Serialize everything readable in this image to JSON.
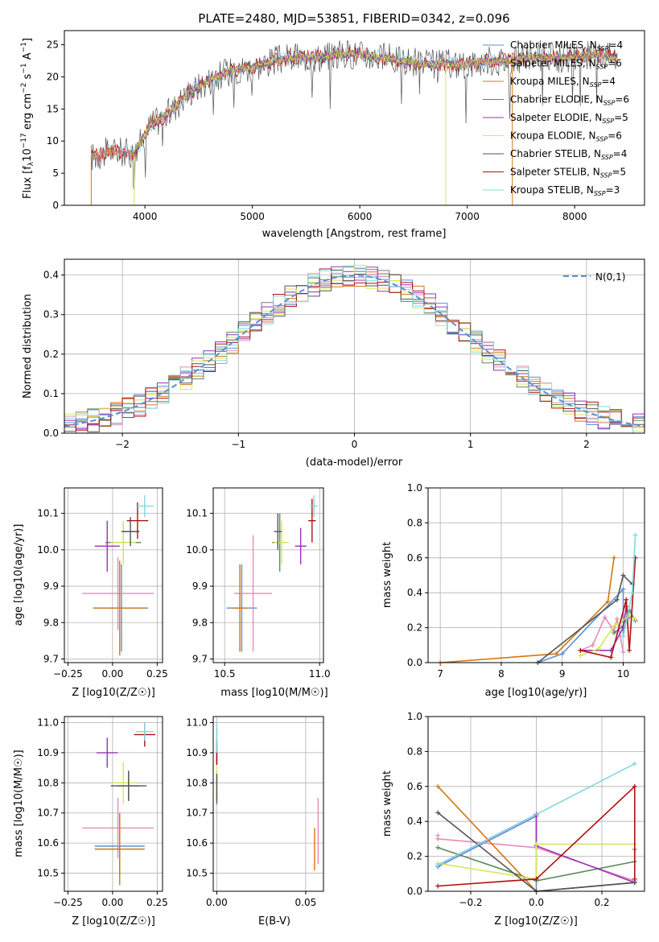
{
  "colors": {
    "chabrier_miles": "#5b8fd6",
    "salpeter_miles": "#e58bb8",
    "kroupa_miles": "#d4760e",
    "chabrier_elodie": "#5c8a5c",
    "salpeter_elodie": "#9b30b8",
    "kroupa_elodie": "#d8e65a",
    "chabrier_stelib": "#555555",
    "salpeter_stelib": "#b01010",
    "kroupa_stelib": "#80d8e0",
    "normal_curve": "#5b8fd6"
  },
  "chart_data": [
    {
      "type": "line",
      "id": "spectrum",
      "title": "PLATE=2480, MJD=53851, FIBERID=0342, z=0.096",
      "xlabel": "wavelength [Angstrom, rest frame]",
      "ylabel": "Flux [f_λ10^-17 erg cm^-2 s^-1 A^-1]",
      "xlim": [
        3250,
        8650
      ],
      "ylim": [
        0,
        27.2
      ],
      "xticks": [
        4000,
        5000,
        6000,
        7000,
        8000
      ],
      "yticks": [
        0,
        5,
        10,
        15,
        20,
        25
      ],
      "grid": false,
      "legend_position": "upper-right",
      "legend": [
        "Chabrier MILES, N_SSP=4",
        "Salpeter MILES, N_SSP=6",
        "Kroupa MILES, N_SSP=4",
        "Chabrier ELODIE, N_SSP=6",
        "Salpeter ELODIE, N_SSP=5",
        "Kroupa ELODIE, N_SSP=6",
        "Chabrier STELIB, N_SSP=4",
        "Salpeter STELIB, N_SSP=5",
        "Kroupa STELIB, N_SSP=3"
      ],
      "continuum": {
        "x": [
          3500,
          3700,
          3900,
          3950,
          4050,
          4200,
          4400,
          4600,
          4800,
          5000,
          5200,
          5400,
          5600,
          5800,
          6000,
          6200,
          6400,
          6600,
          6800,
          7000,
          7200,
          7400,
          7600,
          7800,
          8000,
          8200,
          8400
        ],
        "y": [
          7.5,
          8.5,
          8.0,
          9.5,
          12.5,
          14.0,
          17.5,
          19.5,
          21.0,
          21.5,
          22.5,
          23.0,
          23.0,
          23.5,
          23.5,
          23.0,
          22.5,
          22.0,
          22.0,
          22.0,
          22.5,
          22.5,
          23.0,
          23.0,
          23.0,
          23.5,
          23.0
        ]
      }
    },
    {
      "type": "histogram",
      "id": "residuals",
      "xlabel": "(data-model)/error",
      "ylabel": "Normed distribution",
      "xlim": [
        -2.5,
        2.5
      ],
      "ylim": [
        0,
        0.44
      ],
      "xticks": [
        -2,
        -1,
        0,
        1,
        2
      ],
      "yticks": [
        0.0,
        0.1,
        0.2,
        0.3,
        0.4
      ],
      "grid": true,
      "legend_position": "upper-right",
      "legend": [
        "N(0,1)"
      ],
      "bin_width": 0.1
    },
    {
      "type": "scatter",
      "id": "age_vs_Z",
      "xlabel": "Z [log10(Z/Z☉)]",
      "ylabel": "age [log10(age/yr)]",
      "xlim": [
        -0.27,
        0.28
      ],
      "ylim": [
        9.69,
        10.17
      ],
      "xticks": [
        -0.25,
        0.0,
        0.25
      ],
      "yticks": [
        9.7,
        9.8,
        9.9,
        10.0,
        10.1
      ],
      "grid": true,
      "points": [
        {
          "series": "Chabrier MILES",
          "x": 0.05,
          "y": 9.84,
          "xerr": 0.15,
          "yerr": 0.12
        },
        {
          "series": "Salpeter MILES",
          "x": 0.03,
          "y": 9.88,
          "xerr": 0.2,
          "yerr": 0.1
        },
        {
          "series": "Kroupa MILES",
          "x": 0.04,
          "y": 9.84,
          "xerr": 0.15,
          "yerr": 0.13
        },
        {
          "series": "Chabrier ELODIE",
          "x": 0.06,
          "y": 10.02,
          "xerr": 0.1,
          "yerr": 0.05
        },
        {
          "series": "Salpeter ELODIE",
          "x": -0.03,
          "y": 10.01,
          "xerr": 0.07,
          "yerr": 0.07
        },
        {
          "series": "Kroupa ELODIE",
          "x": 0.06,
          "y": 10.02,
          "xerr": 0.07,
          "yerr": 0.06
        },
        {
          "series": "Chabrier STELIB",
          "x": 0.1,
          "y": 10.05,
          "xerr": 0.05,
          "yerr": 0.04
        },
        {
          "series": "Salpeter STELIB",
          "x": 0.14,
          "y": 10.08,
          "xerr": 0.06,
          "yerr": 0.05
        },
        {
          "series": "Kroupa STELIB",
          "x": 0.18,
          "y": 10.12,
          "xerr": 0.05,
          "yerr": 0.03
        }
      ]
    },
    {
      "type": "scatter",
      "id": "age_vs_mass",
      "xlabel": "mass [log10(M/M☉)]",
      "xlim": [
        10.44,
        11.02
      ],
      "ylim": [
        9.69,
        10.17
      ],
      "xticks": [
        10.5,
        11.0
      ],
      "yticks": [
        9.7,
        9.8,
        9.9,
        10.0,
        10.1
      ],
      "grid": true,
      "points": [
        {
          "series": "Chabrier MILES",
          "x": 10.59,
          "y": 9.84,
          "xerr": 0.08,
          "yerr": 0.12
        },
        {
          "series": "Salpeter MILES",
          "x": 10.65,
          "y": 9.88,
          "xerr": 0.1,
          "yerr": 0.16
        },
        {
          "series": "Kroupa MILES",
          "x": 10.58,
          "y": 9.84,
          "xerr": 0.04,
          "yerr": 0.12
        },
        {
          "series": "Chabrier ELODIE",
          "x": 10.79,
          "y": 10.02,
          "xerr": 0.04,
          "yerr": 0.08
        },
        {
          "series": "Salpeter ELODIE",
          "x": 10.9,
          "y": 10.01,
          "xerr": 0.03,
          "yerr": 0.05
        },
        {
          "series": "Kroupa ELODIE",
          "x": 10.8,
          "y": 10.02,
          "xerr": 0.04,
          "yerr": 0.06
        },
        {
          "series": "Chabrier STELIB",
          "x": 10.78,
          "y": 10.05,
          "xerr": 0.02,
          "yerr": 0.05
        },
        {
          "series": "Salpeter STELIB",
          "x": 10.96,
          "y": 10.08,
          "xerr": 0.02,
          "yerr": 0.06
        },
        {
          "series": "Kroupa STELIB",
          "x": 10.97,
          "y": 10.12,
          "xerr": 0.02,
          "yerr": 0.03
        }
      ]
    },
    {
      "type": "line",
      "id": "weight_vs_age",
      "xlabel": "age [log10(age/yr)]",
      "ylabel": "mass weight",
      "xlim": [
        6.8,
        10.35
      ],
      "ylim": [
        0,
        1.0
      ],
      "xticks": [
        7,
        8,
        9,
        10
      ],
      "yticks": [
        0.0,
        0.2,
        0.4,
        0.6,
        0.8,
        1.0
      ],
      "grid": true,
      "series": [
        {
          "name": "Chabrier MILES",
          "x": [
            8.6,
            9.0,
            10.0,
            10.0
          ],
          "y": [
            0.0,
            0.05,
            0.42,
            0.15
          ]
        },
        {
          "name": "Salpeter MILES",
          "x": [
            9.3,
            9.5,
            9.7,
            9.85,
            9.9,
            10.0
          ],
          "y": [
            0.07,
            0.1,
            0.26,
            0.18,
            0.25,
            0.06
          ]
        },
        {
          "name": "Kroupa MILES",
          "x": [
            7.0,
            8.9,
            9.75,
            9.85
          ],
          "y": [
            0.0,
            0.05,
            0.35,
            0.6
          ]
        },
        {
          "name": "Chabrier ELODIE",
          "x": [
            9.85,
            10.0,
            10.1,
            10.2
          ],
          "y": [
            0.17,
            0.21,
            0.3,
            0.24
          ]
        },
        {
          "name": "Salpeter ELODIE",
          "x": [
            9.3,
            9.8,
            10.0,
            10.05,
            10.1
          ],
          "y": [
            0.07,
            0.07,
            0.2,
            0.32,
            0.26
          ]
        },
        {
          "name": "Kroupa ELODIE",
          "x": [
            9.3,
            9.6,
            9.85,
            9.95,
            10.1,
            10.2
          ],
          "y": [
            0.04,
            0.08,
            0.21,
            0.23,
            0.27,
            0.25
          ]
        },
        {
          "name": "Chabrier STELIB",
          "x": [
            8.6,
            9.9,
            10.0,
            10.15
          ],
          "y": [
            0.0,
            0.36,
            0.5,
            0.45
          ]
        },
        {
          "name": "Salpeter STELIB",
          "x": [
            9.3,
            9.8,
            10.05,
            10.1,
            10.2
          ],
          "y": [
            0.07,
            0.03,
            0.36,
            0.07,
            0.6
          ]
        },
        {
          "name": "Kroupa STELIB",
          "x": [
            10.0,
            10.15,
            10.2
          ],
          "y": [
            0.15,
            0.4,
            0.73
          ]
        }
      ]
    },
    {
      "type": "scatter",
      "id": "mass_vs_Z",
      "xlabel": "Z [log10(Z/Z☉)]",
      "ylabel": "mass [log10(M/M☉)]",
      "xlim": [
        -0.27,
        0.28
      ],
      "ylim": [
        10.44,
        11.02
      ],
      "xticks": [
        -0.25,
        0.0,
        0.25
      ],
      "yticks": [
        10.5,
        10.6,
        10.7,
        10.8,
        10.9,
        11.0
      ],
      "grid": true,
      "points": [
        {
          "series": "Chabrier MILES",
          "x": 0.04,
          "y": 10.59,
          "xerr": 0.14,
          "yerr": 0.1
        },
        {
          "series": "Salpeter MILES",
          "x": 0.03,
          "y": 10.65,
          "xerr": 0.2,
          "yerr": 0.1
        },
        {
          "series": "Kroupa MILES",
          "x": 0.04,
          "y": 10.58,
          "xerr": 0.14,
          "yerr": 0.12
        },
        {
          "series": "Chabrier ELODIE",
          "x": 0.09,
          "y": 10.79,
          "xerr": 0.06,
          "yerr": 0.05
        },
        {
          "series": "Salpeter ELODIE",
          "x": -0.03,
          "y": 10.9,
          "xerr": 0.06,
          "yerr": 0.05
        },
        {
          "series": "Kroupa ELODIE",
          "x": 0.06,
          "y": 10.8,
          "xerr": 0.07,
          "yerr": 0.07
        },
        {
          "series": "Chabrier STELIB",
          "x": 0.09,
          "y": 10.79,
          "xerr": 0.1,
          "yerr": 0.05
        },
        {
          "series": "Salpeter STELIB",
          "x": 0.18,
          "y": 10.96,
          "xerr": 0.06,
          "yerr": 0.04
        },
        {
          "series": "Kroupa STELIB",
          "x": 0.18,
          "y": 10.97,
          "xerr": 0.05,
          "yerr": 0.03
        }
      ]
    },
    {
      "type": "scatter",
      "id": "mass_vs_EBV",
      "xlabel": "E(B-V)",
      "xlim": [
        -0.002,
        0.06
      ],
      "ylim": [
        10.44,
        11.02
      ],
      "xticks": [
        0.0,
        0.05
      ],
      "yticks": [
        10.5,
        10.6,
        10.7,
        10.8,
        10.9,
        11.0
      ],
      "grid": true,
      "points": [
        {
          "series": "Chabrier MILES",
          "x": 0.0,
          "y": 10.92,
          "xerr": 0,
          "yerr": 0.06
        },
        {
          "series": "Salpeter MILES",
          "x": 0.057,
          "y": 10.64,
          "xerr": 0,
          "yerr": 0.11
        },
        {
          "series": "Kroupa MILES",
          "x": 0.055,
          "y": 10.58,
          "xerr": 0,
          "yerr": 0.07
        },
        {
          "series": "Chabrier ELODIE",
          "x": 0.0,
          "y": 10.79,
          "xerr": 0,
          "yerr": 0.05
        },
        {
          "series": "Salpeter ELODIE",
          "x": 0.0,
          "y": 10.9,
          "xerr": 0,
          "yerr": 0.04
        },
        {
          "series": "Kroupa ELODIE",
          "x": 0.0,
          "y": 10.8,
          "xerr": 0,
          "yerr": 0.06
        },
        {
          "series": "Chabrier STELIB",
          "x": 0.0,
          "y": 10.78,
          "xerr": 0,
          "yerr": 0.05
        },
        {
          "series": "Salpeter STELIB",
          "x": 0.0,
          "y": 10.9,
          "xerr": 0,
          "yerr": 0.04
        },
        {
          "series": "Kroupa STELIB",
          "x": 0.0,
          "y": 10.95,
          "xerr": 0,
          "yerr": 0.05
        }
      ]
    },
    {
      "type": "line",
      "id": "weight_vs_Z",
      "xlabel": "Z [log10(Z/Z☉)]",
      "ylabel": "mass weight",
      "xlim": [
        -0.33,
        0.33
      ],
      "ylim": [
        0,
        1.0
      ],
      "xticks": [
        -0.2,
        0.0,
        0.2
      ],
      "yticks": [
        0.0,
        0.2,
        0.4,
        0.6,
        0.8,
        1.0
      ],
      "grid": true,
      "series": [
        {
          "name": "Chabrier MILES",
          "x": [
            -0.3,
            0.0,
            0.0,
            0.3
          ],
          "y": [
            0.14,
            0.43,
            0.0,
            0.05
          ]
        },
        {
          "name": "Salpeter MILES",
          "x": [
            -0.3,
            -0.3,
            0.0,
            0.3
          ],
          "y": [
            0.32,
            0.3,
            0.25,
            0.06
          ]
        },
        {
          "name": "Kroupa MILES",
          "x": [
            -0.3,
            0.0,
            0.3
          ],
          "y": [
            0.6,
            0.0,
            0.05
          ]
        },
        {
          "name": "Chabrier ELODIE",
          "x": [
            -0.3,
            0.0,
            0.3,
            0.3
          ],
          "y": [
            0.25,
            0.06,
            0.17,
            0.24
          ]
        },
        {
          "name": "Salpeter ELODIE",
          "x": [
            -0.3,
            0.0,
            0.0,
            0.3
          ],
          "y": [
            0.15,
            0.44,
            0.26,
            0.05
          ]
        },
        {
          "name": "Kroupa ELODIE",
          "x": [
            -0.3,
            0.0,
            0.0,
            0.3
          ],
          "y": [
            0.16,
            0.07,
            0.27,
            0.27
          ]
        },
        {
          "name": "Chabrier STELIB",
          "x": [
            -0.3,
            0.0,
            0.3
          ],
          "y": [
            0.45,
            0.0,
            0.05
          ]
        },
        {
          "name": "Salpeter STELIB",
          "x": [
            -0.3,
            0.0,
            0.3,
            0.3
          ],
          "y": [
            0.03,
            0.07,
            0.6,
            0.07
          ]
        },
        {
          "name": "Kroupa STELIB",
          "x": [
            -0.3,
            0.3
          ],
          "y": [
            0.15,
            0.73
          ]
        }
      ]
    }
  ]
}
